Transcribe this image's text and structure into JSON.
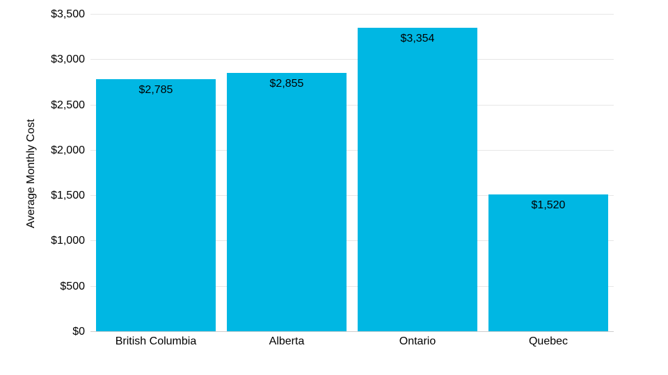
{
  "chart_data": {
    "type": "bar",
    "title": "",
    "categories": [
      "British Columbia",
      "Alberta",
      "Ontario",
      "Quebec"
    ],
    "values": [
      2785,
      2855,
      3354,
      1520
    ],
    "value_labels": [
      "$2,785",
      "$2,855",
      "$3,354",
      "$1,520"
    ],
    "xlabel": "",
    "ylabel": "Average Monthly Cost",
    "ylim": [
      0,
      3500
    ],
    "yticks": [
      0,
      500,
      1000,
      1500,
      2000,
      2500,
      3000,
      3500
    ],
    "ytick_labels": [
      "$0",
      "$500",
      "$1,000",
      "$1,500",
      "$2,000",
      "$2,500",
      "$3,000",
      "$3,500"
    ],
    "grid": true,
    "legend": "none",
    "colors": {
      "bar": "#00b7e3",
      "gridline": "#e6e6e6",
      "baseline": "#cccccc",
      "label": "#000000",
      "background": "#ffffff"
    }
  }
}
